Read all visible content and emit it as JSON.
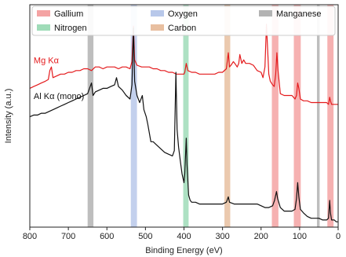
{
  "chart_data": {
    "type": "line",
    "xlabel": "Binding Energy (eV)",
    "ylabel": "Intensity (a.u.)",
    "xlim": [
      800,
      0
    ],
    "x_reversed": true,
    "x_ticks": [
      800,
      700,
      600,
      500,
      400,
      300,
      200,
      100,
      0
    ],
    "y_ticks_visible": false,
    "legend": {
      "placement": "top",
      "items": [
        {
          "name": "Gallium",
          "color": "#f4a3a3"
        },
        {
          "name": "Oxygen",
          "color": "#b8c8ea"
        },
        {
          "name": "Manganese",
          "color": "#b3b3b3"
        },
        {
          "name": "Nitrogen",
          "color": "#9fdcb8"
        },
        {
          "name": "Carbon",
          "color": "#e8bfa0"
        }
      ]
    },
    "bands": [
      {
        "element": "Manganese",
        "from": 650,
        "to": 635,
        "color": "#b3b3b3"
      },
      {
        "element": "Oxygen",
        "from": 538,
        "to": 522,
        "color": "#b8c8ea"
      },
      {
        "element": "Nitrogen",
        "from": 402,
        "to": 388,
        "color": "#9fdcb8"
      },
      {
        "element": "Carbon",
        "from": 295,
        "to": 280,
        "color": "#e8bfa0"
      },
      {
        "element": "Gallium",
        "from": 172,
        "to": 155,
        "color": "#f4a3a3"
      },
      {
        "element": "Gallium",
        "from": 115,
        "to": 97,
        "color": "#f4a3a3"
      },
      {
        "element": "Manganese",
        "from": 55,
        "to": 48,
        "color": "#b3b3b3"
      },
      {
        "element": "Gallium",
        "from": 28,
        "to": 12,
        "color": "#f4a3a3"
      }
    ],
    "series": [
      {
        "name": "Mg Kα",
        "color": "#e41a1c",
        "label_at": [
          790,
          0.42
        ],
        "points": [
          [
            800,
            0.28
          ],
          [
            790,
            0.29
          ],
          [
            780,
            0.3
          ],
          [
            770,
            0.31
          ],
          [
            760,
            0.32
          ],
          [
            752,
            0.33
          ],
          [
            748,
            0.38
          ],
          [
            744,
            0.4
          ],
          [
            740,
            0.34
          ],
          [
            730,
            0.35
          ],
          [
            720,
            0.36
          ],
          [
            710,
            0.36
          ],
          [
            700,
            0.37
          ],
          [
            690,
            0.37
          ],
          [
            680,
            0.38
          ],
          [
            670,
            0.38
          ],
          [
            660,
            0.39
          ],
          [
            650,
            0.39
          ],
          [
            640,
            0.38
          ],
          [
            630,
            0.4
          ],
          [
            620,
            0.4
          ],
          [
            610,
            0.39
          ],
          [
            600,
            0.4
          ],
          [
            590,
            0.4
          ],
          [
            580,
            0.4
          ],
          [
            570,
            0.39
          ],
          [
            560,
            0.4
          ],
          [
            550,
            0.4
          ],
          [
            540,
            0.39
          ],
          [
            535,
            0.43
          ],
          [
            531,
            0.63
          ],
          [
            528,
            0.44
          ],
          [
            522,
            0.41
          ],
          [
            510,
            0.4
          ],
          [
            500,
            0.4
          ],
          [
            490,
            0.4
          ],
          [
            480,
            0.39
          ],
          [
            470,
            0.39
          ],
          [
            460,
            0.38
          ],
          [
            450,
            0.38
          ],
          [
            440,
            0.37
          ],
          [
            430,
            0.37
          ],
          [
            420,
            0.36
          ],
          [
            410,
            0.36
          ],
          [
            400,
            0.36
          ],
          [
            398,
            0.37
          ],
          [
            394,
            0.42
          ],
          [
            390,
            0.38
          ],
          [
            380,
            0.37
          ],
          [
            370,
            0.37
          ],
          [
            360,
            0.36
          ],
          [
            350,
            0.36
          ],
          [
            340,
            0.36
          ],
          [
            330,
            0.36
          ],
          [
            320,
            0.36
          ],
          [
            310,
            0.37
          ],
          [
            300,
            0.37
          ],
          [
            290,
            0.39
          ],
          [
            285,
            0.48
          ],
          [
            282,
            0.4
          ],
          [
            278,
            0.41
          ],
          [
            272,
            0.43
          ],
          [
            268,
            0.42
          ],
          [
            262,
            0.4
          ],
          [
            258,
            0.42
          ],
          [
            255,
            0.47
          ],
          [
            250,
            0.42
          ],
          [
            245,
            0.44
          ],
          [
            240,
            0.42
          ],
          [
            230,
            0.42
          ],
          [
            220,
            0.41
          ],
          [
            210,
            0.38
          ],
          [
            200,
            0.37
          ],
          [
            195,
            0.34
          ],
          [
            190,
            0.4
          ],
          [
            186,
            0.64
          ],
          [
            183,
            0.5
          ],
          [
            180,
            0.36
          ],
          [
            176,
            0.32
          ],
          [
            170,
            0.3
          ],
          [
            166,
            0.29
          ],
          [
            162,
            0.36
          ],
          [
            159,
            0.48
          ],
          [
            156,
            0.38
          ],
          [
            150,
            0.25
          ],
          [
            140,
            0.24
          ],
          [
            130,
            0.24
          ],
          [
            120,
            0.24
          ],
          [
            112,
            0.22
          ],
          [
            108,
            0.24
          ],
          [
            105,
            0.31
          ],
          [
            102,
            0.28
          ],
          [
            98,
            0.22
          ],
          [
            90,
            0.21
          ],
          [
            80,
            0.21
          ],
          [
            70,
            0.2
          ],
          [
            60,
            0.2
          ],
          [
            50,
            0.2
          ],
          [
            40,
            0.2
          ],
          [
            30,
            0.2
          ],
          [
            25,
            0.19
          ],
          [
            22,
            0.23
          ],
          [
            20,
            0.21
          ],
          [
            17,
            0.19
          ],
          [
            10,
            0.19
          ],
          [
            5,
            0.19
          ],
          [
            0,
            0.19
          ]
        ]
      },
      {
        "name": "Al Kα (mono)",
        "color": "#111111",
        "label_at": [
          790,
          0.22
        ],
        "points": [
          [
            800,
            0.12
          ],
          [
            790,
            0.13
          ],
          [
            780,
            0.13
          ],
          [
            770,
            0.14
          ],
          [
            760,
            0.14
          ],
          [
            750,
            0.15
          ],
          [
            740,
            0.16
          ],
          [
            730,
            0.17
          ],
          [
            720,
            0.18
          ],
          [
            710,
            0.19
          ],
          [
            700,
            0.2
          ],
          [
            690,
            0.21
          ],
          [
            680,
            0.22
          ],
          [
            670,
            0.23
          ],
          [
            660,
            0.24
          ],
          [
            650,
            0.25
          ],
          [
            645,
            0.28
          ],
          [
            640,
            0.31
          ],
          [
            636,
            0.24
          ],
          [
            630,
            0.26
          ],
          [
            620,
            0.27
          ],
          [
            610,
            0.28
          ],
          [
            600,
            0.28
          ],
          [
            590,
            0.29
          ],
          [
            580,
            0.3
          ],
          [
            575,
            0.34
          ],
          [
            570,
            0.29
          ],
          [
            560,
            0.27
          ],
          [
            550,
            0.24
          ],
          [
            540,
            0.22
          ],
          [
            535,
            0.3
          ],
          [
            531,
            0.62
          ],
          [
            528,
            0.32
          ],
          [
            522,
            0.24
          ],
          [
            515,
            0.2
          ],
          [
            508,
            0.24
          ],
          [
            504,
            0.16
          ],
          [
            498,
            0.12
          ],
          [
            494,
            0.08
          ],
          [
            490,
            0.03
          ],
          [
            486,
            -0.02
          ],
          [
            480,
            -0.02
          ],
          [
            470,
            -0.04
          ],
          [
            460,
            -0.06
          ],
          [
            450,
            -0.08
          ],
          [
            440,
            -0.09
          ],
          [
            430,
            -0.1
          ],
          [
            425,
            -0.07
          ],
          [
            421,
            0.37
          ],
          [
            418,
            0.05
          ],
          [
            414,
            -0.05
          ],
          [
            410,
            -0.12
          ],
          [
            405,
            -0.2
          ],
          [
            400,
            -0.25
          ],
          [
            398,
            -0.2
          ],
          [
            394,
            0.0
          ],
          [
            392,
            -0.15
          ],
          [
            388,
            -0.32
          ],
          [
            384,
            -0.35
          ],
          [
            380,
            -0.36
          ],
          [
            370,
            -0.36
          ],
          [
            360,
            -0.37
          ],
          [
            350,
            -0.37
          ],
          [
            340,
            -0.37
          ],
          [
            330,
            -0.37
          ],
          [
            320,
            -0.37
          ],
          [
            310,
            -0.37
          ],
          [
            300,
            -0.37
          ],
          [
            290,
            -0.36
          ],
          [
            285,
            -0.33
          ],
          [
            282,
            -0.36
          ],
          [
            270,
            -0.37
          ],
          [
            260,
            -0.37
          ],
          [
            250,
            -0.37
          ],
          [
            240,
            -0.37
          ],
          [
            230,
            -0.37
          ],
          [
            220,
            -0.37
          ],
          [
            210,
            -0.37
          ],
          [
            200,
            -0.38
          ],
          [
            190,
            -0.39
          ],
          [
            180,
            -0.39
          ],
          [
            170,
            -0.38
          ],
          [
            165,
            -0.35
          ],
          [
            160,
            -0.3
          ],
          [
            157,
            -0.34
          ],
          [
            150,
            -0.39
          ],
          [
            140,
            -0.41
          ],
          [
            130,
            -0.41
          ],
          [
            120,
            -0.41
          ],
          [
            112,
            -0.4
          ],
          [
            108,
            -0.34
          ],
          [
            105,
            -0.25
          ],
          [
            102,
            -0.33
          ],
          [
            98,
            -0.4
          ],
          [
            90,
            -0.42
          ],
          [
            80,
            -0.44
          ],
          [
            70,
            -0.45
          ],
          [
            60,
            -0.45
          ],
          [
            50,
            -0.45
          ],
          [
            40,
            -0.46
          ],
          [
            30,
            -0.46
          ],
          [
            25,
            -0.45
          ],
          [
            22,
            -0.35
          ],
          [
            20,
            -0.42
          ],
          [
            17,
            -0.46
          ],
          [
            10,
            -0.46
          ],
          [
            5,
            -0.47
          ],
          [
            0,
            -0.47
          ]
        ]
      }
    ],
    "ylim": [
      -0.5,
      0.75
    ]
  }
}
